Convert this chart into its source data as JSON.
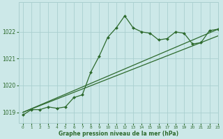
{
  "title": "Graphe pression niveau de la mer (hPa)",
  "bg_color": "#cce8e8",
  "grid_color": "#aacfcf",
  "line_color": "#2d6a2d",
  "xlim": [
    -0.5,
    23
  ],
  "ylim": [
    1018.6,
    1023.1
  ],
  "yticks": [
    1019,
    1020,
    1021,
    1022
  ],
  "xtick_labels": [
    "0",
    "1",
    "2",
    "3",
    "4",
    "5",
    "6",
    "7",
    "8",
    "9",
    "10",
    "11",
    "12",
    "13",
    "14",
    "15",
    "16",
    "17",
    "18",
    "19",
    "20",
    "21",
    "22",
    "23"
  ],
  "series": [
    {
      "x": [
        0,
        1,
        2,
        3,
        4,
        5,
        6,
        7,
        8,
        9,
        10,
        11,
        12,
        13,
        14,
        15,
        16,
        17,
        18,
        19,
        20,
        21,
        22,
        23
      ],
      "y": [
        1018.9,
        1019.1,
        1019.1,
        1019.2,
        1019.15,
        1019.2,
        1019.55,
        1019.65,
        1020.5,
        1021.1,
        1021.8,
        1022.15,
        1022.6,
        1022.15,
        1022.0,
        1021.95,
        1021.7,
        1021.75,
        1022.0,
        1021.95,
        1021.55,
        1021.6,
        1022.05,
        1022.1
      ],
      "marker": "D",
      "markersize": 2.0,
      "linewidth": 0.9,
      "zorder": 3
    },
    {
      "x": [
        0,
        23
      ],
      "y": [
        1019.0,
        1022.1
      ],
      "marker": null,
      "linewidth": 0.9,
      "zorder": 2
    },
    {
      "x": [
        0,
        23
      ],
      "y": [
        1019.0,
        1021.85
      ],
      "marker": null,
      "linewidth": 0.9,
      "zorder": 2
    }
  ],
  "xlabel_fontsize": 5.5,
  "xlabel_fontweight": "bold",
  "ytick_fontsize": 5.5,
  "xtick_fontsize": 4.2,
  "figure_width": 3.2,
  "figure_height": 2.0,
  "dpi": 100
}
